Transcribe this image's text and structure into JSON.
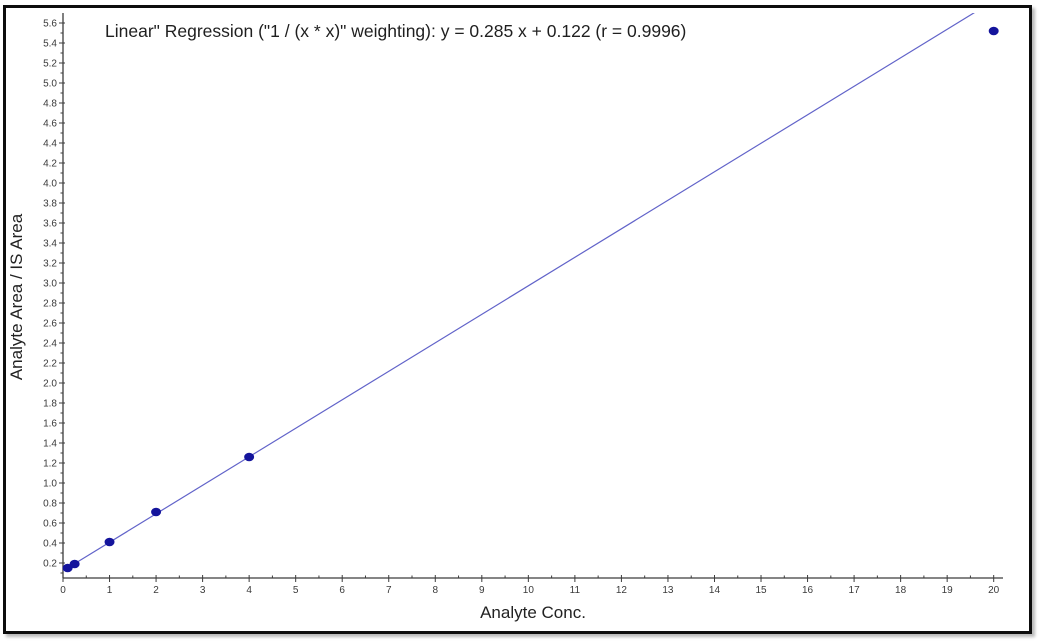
{
  "chart_data": {
    "type": "scatter",
    "title": "Linear\" Regression (\"1  / (x * x)\" weighting): y = 0.285 x + 0.122 (r = 0.9996)",
    "xlabel": "Analyte Conc.",
    "ylabel": "Analyte Area / IS Area",
    "xlim": [
      0,
      20.2
    ],
    "ylim": [
      0.05,
      5.7
    ],
    "grid": false,
    "legend": "none",
    "x_ticks": [
      0,
      1,
      2,
      3,
      4,
      5,
      6,
      7,
      8,
      9,
      10,
      11,
      12,
      13,
      14,
      15,
      16,
      17,
      18,
      19,
      20
    ],
    "x_tick_labels": [
      "0",
      "1",
      "2",
      "3",
      "4",
      "5",
      "6",
      "7",
      "8",
      "9",
      "10",
      "11",
      "12",
      "13",
      "14",
      "15",
      "16",
      "17",
      "18",
      "19",
      "20"
    ],
    "x_minor_step": 0.5,
    "y_ticks": [
      0.2,
      0.4,
      0.6,
      0.8,
      1.0,
      1.2,
      1.4,
      1.6,
      1.8,
      2.0,
      2.2,
      2.4,
      2.6,
      2.8,
      3.0,
      3.2,
      3.4,
      3.6,
      3.8,
      4.0,
      4.2,
      4.4,
      4.6,
      4.8,
      5.0,
      5.2,
      5.4,
      5.6
    ],
    "y_tick_labels": [
      "0.2",
      "0.4",
      "0.6",
      "0.8",
      "1.0",
      "1.2",
      "1.4",
      "1.6",
      "1.8",
      "2.0",
      "2.2",
      "2.4",
      "2.6",
      "2.8",
      "3.0",
      "3.2",
      "3.4",
      "3.6",
      "3.8",
      "4.0",
      "4.2",
      "4.4",
      "4.6",
      "4.8",
      "5.0",
      "5.2",
      "5.4",
      "5.6"
    ],
    "y_minor_step": 0.1,
    "points": [
      {
        "x": 0.1,
        "y": 0.15
      },
      {
        "x": 0.25,
        "y": 0.19
      },
      {
        "x": 1,
        "y": 0.41
      },
      {
        "x": 2,
        "y": 0.71
      },
      {
        "x": 4,
        "y": 1.26
      },
      {
        "x": 20,
        "y": 5.52
      }
    ],
    "regression": {
      "model": "Linear",
      "weighting": "1 / (x * x)",
      "slope": 0.285,
      "intercept": 0.122,
      "r": 0.9996
    },
    "colors": {
      "line": "#6163c9",
      "point": "#14149c",
      "axis": "#3c3c3c",
      "tick_text": "#3a3a3a",
      "frame": "#0d0d0d"
    }
  }
}
